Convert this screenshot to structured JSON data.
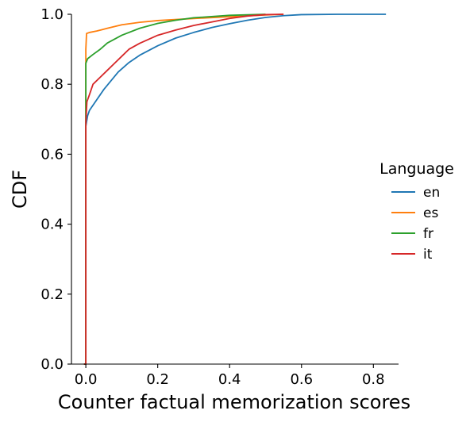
{
  "chart_data": {
    "type": "line",
    "subtype": "ecdf",
    "xlabel": "Counter factual memorization scores",
    "ylabel": "CDF",
    "xlim": [
      -0.04,
      0.87
    ],
    "ylim": [
      0.0,
      1.0
    ],
    "x_ticks": [
      0.0,
      0.2,
      0.4,
      0.6,
      0.8
    ],
    "x_tick_labels": [
      "0.0",
      "0.2",
      "0.4",
      "0.6",
      "0.8"
    ],
    "y_ticks": [
      0.0,
      0.2,
      0.4,
      0.6,
      0.8,
      1.0
    ],
    "y_tick_labels": [
      "0.0",
      "0.2",
      "0.4",
      "0.6",
      "0.8",
      "1.0"
    ],
    "grid": false,
    "legend_title": "Language",
    "legend_placement": "right",
    "series": [
      {
        "name": "en",
        "color": "#1f77b4",
        "points": [
          [
            -0.005,
            0.0
          ],
          [
            0.0,
            0.0
          ],
          [
            0.0,
            0.68
          ],
          [
            0.005,
            0.71
          ],
          [
            0.01,
            0.725
          ],
          [
            0.02,
            0.74
          ],
          [
            0.03,
            0.755
          ],
          [
            0.04,
            0.77
          ],
          [
            0.05,
            0.785
          ],
          [
            0.07,
            0.81
          ],
          [
            0.09,
            0.835
          ],
          [
            0.12,
            0.862
          ],
          [
            0.15,
            0.883
          ],
          [
            0.2,
            0.91
          ],
          [
            0.25,
            0.932
          ],
          [
            0.3,
            0.948
          ],
          [
            0.35,
            0.962
          ],
          [
            0.4,
            0.973
          ],
          [
            0.45,
            0.983
          ],
          [
            0.5,
            0.991
          ],
          [
            0.55,
            0.996
          ],
          [
            0.6,
            0.999
          ],
          [
            0.7,
            1.0
          ],
          [
            0.835,
            1.0
          ]
        ]
      },
      {
        "name": "es",
        "color": "#ff7f0e",
        "points": [
          [
            -0.005,
            0.0
          ],
          [
            0.0,
            0.0
          ],
          [
            0.0,
            0.9
          ],
          [
            0.002,
            0.945
          ],
          [
            0.01,
            0.948
          ],
          [
            0.03,
            0.952
          ],
          [
            0.06,
            0.96
          ],
          [
            0.1,
            0.97
          ],
          [
            0.15,
            0.977
          ],
          [
            0.2,
            0.982
          ],
          [
            0.3,
            0.988
          ],
          [
            0.4,
            0.993
          ],
          [
            0.5,
            0.998
          ],
          [
            0.55,
            1.0
          ]
        ]
      },
      {
        "name": "fr",
        "color": "#2ca02c",
        "points": [
          [
            -0.005,
            0.0
          ],
          [
            0.0,
            0.0
          ],
          [
            0.0,
            0.86
          ],
          [
            0.005,
            0.873
          ],
          [
            0.02,
            0.885
          ],
          [
            0.04,
            0.9
          ],
          [
            0.06,
            0.918
          ],
          [
            0.1,
            0.94
          ],
          [
            0.15,
            0.96
          ],
          [
            0.2,
            0.974
          ],
          [
            0.25,
            0.983
          ],
          [
            0.3,
            0.99
          ],
          [
            0.4,
            0.997
          ],
          [
            0.5,
            1.0
          ]
        ]
      },
      {
        "name": "it",
        "color": "#d62728",
        "points": [
          [
            -0.005,
            0.0
          ],
          [
            0.0,
            0.0
          ],
          [
            0.0,
            0.69
          ],
          [
            0.003,
            0.75
          ],
          [
            0.01,
            0.77
          ],
          [
            0.02,
            0.8
          ],
          [
            0.04,
            0.82
          ],
          [
            0.06,
            0.84
          ],
          [
            0.08,
            0.86
          ],
          [
            0.1,
            0.88
          ],
          [
            0.12,
            0.9
          ],
          [
            0.15,
            0.917
          ],
          [
            0.2,
            0.94
          ],
          [
            0.25,
            0.955
          ],
          [
            0.3,
            0.968
          ],
          [
            0.35,
            0.978
          ],
          [
            0.4,
            0.988
          ],
          [
            0.45,
            0.995
          ],
          [
            0.5,
            0.999
          ],
          [
            0.55,
            1.0
          ]
        ]
      }
    ]
  }
}
